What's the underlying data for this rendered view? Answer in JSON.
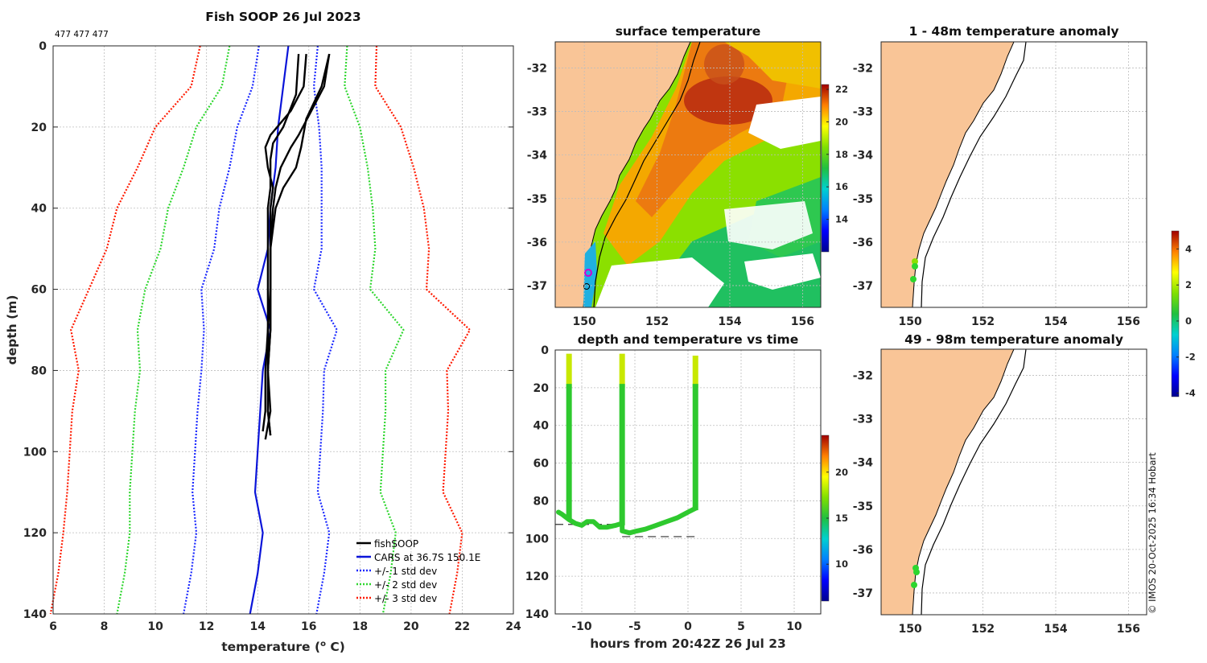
{
  "suptitle": "Fish SOOP 26 Jul 2023",
  "top_annot": "477 477 477",
  "credit": "© IMOS 20-Oct-2025 16:34 Hobart",
  "colors": {
    "land": "#f9c597",
    "fish": "#000000",
    "cars": "#0a14d9",
    "std1": "#1a28ff",
    "std2": "#2ed62e",
    "std3": "#ff1a00",
    "track": "#2ec92e",
    "magenta": "#d000d0"
  },
  "chart_data": [
    {
      "id": "profile",
      "type": "line",
      "title": "",
      "xlabel": "temperature (",
      "xlabel_sup": "o",
      "xlabel_end": " C)",
      "ylabel": "depth (m)",
      "xlim": [
        6,
        24
      ],
      "ylim": [
        140,
        0
      ],
      "xticks": [
        6,
        8,
        10,
        12,
        14,
        16,
        18,
        20,
        22,
        24
      ],
      "yticks": [
        0,
        20,
        40,
        60,
        80,
        100,
        120,
        140
      ],
      "legend": [
        "fishSOOP",
        "CARS at 36.7S 150.1E",
        "+/- 1 std dev",
        "+/- 2 std dev",
        "+/- 3 std dev"
      ],
      "depth": [
        0,
        10,
        20,
        30,
        40,
        50,
        60,
        70,
        80,
        90,
        100,
        110,
        120,
        130,
        140
      ],
      "cars": [
        15.2,
        15.0,
        14.8,
        14.7,
        14.5,
        14.4,
        14.0,
        14.5,
        14.2,
        14.1,
        14.0,
        13.9,
        14.2,
        14.0,
        13.7
      ],
      "std_offsets": [
        [
          1.15,
          1.2,
          1.6,
          1.8,
          2.0,
          2.1,
          2.2,
          2.6,
          2.4,
          2.45,
          2.45,
          2.45,
          2.6,
          2.6,
          2.6
        ],
        [
          2.3,
          2.4,
          3.2,
          3.6,
          4.0,
          4.2,
          4.4,
          5.2,
          4.8,
          4.9,
          4.9,
          4.9,
          5.2,
          5.2,
          5.2
        ],
        [
          3.45,
          3.6,
          4.8,
          5.4,
          6.0,
          6.3,
          6.6,
          7.8,
          7.2,
          7.35,
          7.35,
          7.35,
          7.8,
          7.8,
          7.8
        ]
      ],
      "fish_profiles": [
        {
          "d": [
            2,
            10,
            16,
            22,
            25,
            30,
            35,
            40,
            50,
            60,
            70,
            80,
            90,
            96
          ],
          "t": [
            15.9,
            15.8,
            15.3,
            14.5,
            14.3,
            14.4,
            14.6,
            14.5,
            14.5,
            14.5,
            14.5,
            14.4,
            14.4,
            14.5
          ]
        },
        {
          "d": [
            2,
            10,
            16,
            22,
            25,
            30,
            35,
            40,
            50,
            60,
            70,
            80,
            90,
            97
          ],
          "t": [
            16.8,
            16.6,
            16.1,
            15.6,
            15.3,
            14.9,
            14.7,
            14.6,
            14.5,
            14.5,
            14.4,
            14.4,
            14.5,
            14.3
          ]
        },
        {
          "d": [
            2,
            10,
            18,
            25,
            30,
            35,
            40,
            50,
            60,
            70,
            80,
            90,
            96
          ],
          "t": [
            16.8,
            16.5,
            15.9,
            15.7,
            15.5,
            15.0,
            14.7,
            14.5,
            14.5,
            14.5,
            14.4,
            14.4,
            14.5
          ]
        },
        {
          "d": [
            2,
            12,
            20,
            24,
            28,
            35,
            40,
            50,
            60,
            70,
            80,
            90,
            95
          ],
          "t": [
            15.6,
            15.5,
            15.0,
            14.6,
            14.5,
            14.5,
            14.4,
            14.4,
            14.4,
            14.4,
            14.3,
            14.3,
            14.2
          ]
        }
      ]
    },
    {
      "id": "sst",
      "type": "heatmap",
      "title": "surface temperature",
      "xlim": [
        149.2,
        156.5
      ],
      "ylim": [
        -37.5,
        -31.4
      ],
      "xticks": [
        150,
        152,
        154,
        156
      ],
      "yticks": [
        -32,
        -33,
        -34,
        -35,
        -36,
        -37
      ],
      "colorbar": {
        "ticks": [
          14,
          16,
          18,
          20,
          22
        ],
        "range": [
          12,
          22.3
        ]
      }
    },
    {
      "id": "time",
      "type": "scatter",
      "title": "depth and temperature vs time",
      "xlabel": "hours from 20:42Z 26 Jul 23",
      "xlim": [
        -12.5,
        12.5
      ],
      "ylim": [
        140,
        0
      ],
      "xticks": [
        -10,
        -5,
        0,
        5,
        10
      ],
      "yticks": [
        0,
        20,
        40,
        60,
        80,
        100,
        120,
        140
      ],
      "bottom_depths": [
        {
          "x": [
            -12.5,
            -6.2
          ],
          "y": 92.5
        },
        {
          "x": [
            -6.2,
            0.8
          ],
          "y": 99
        }
      ],
      "colorbar": {
        "ticks": [
          10,
          15,
          20
        ],
        "range": [
          6,
          24
        ]
      }
    },
    {
      "id": "anom1",
      "type": "map",
      "title": "1 - 48m temperature anomaly",
      "xlim": [
        149.2,
        156.5
      ],
      "ylim": [
        -37.5,
        -31.4
      ],
      "xticks": [
        150,
        152,
        154,
        156
      ],
      "yticks": [
        -32,
        -33,
        -34,
        -35,
        -36,
        -37
      ]
    },
    {
      "id": "anom2",
      "type": "map",
      "title": "49 - 98m temperature anomaly",
      "xlim": [
        149.2,
        156.5
      ],
      "ylim": [
        -37.5,
        -31.4
      ],
      "xticks": [
        150,
        152,
        154,
        156
      ],
      "yticks": [
        -32,
        -33,
        -34,
        -35,
        -36,
        -37
      ]
    },
    {
      "id": "anom_cb",
      "type": "colorbar",
      "ticks": [
        -4,
        -2,
        0,
        2,
        4
      ],
      "range": [
        -4.2,
        5.0
      ]
    }
  ]
}
